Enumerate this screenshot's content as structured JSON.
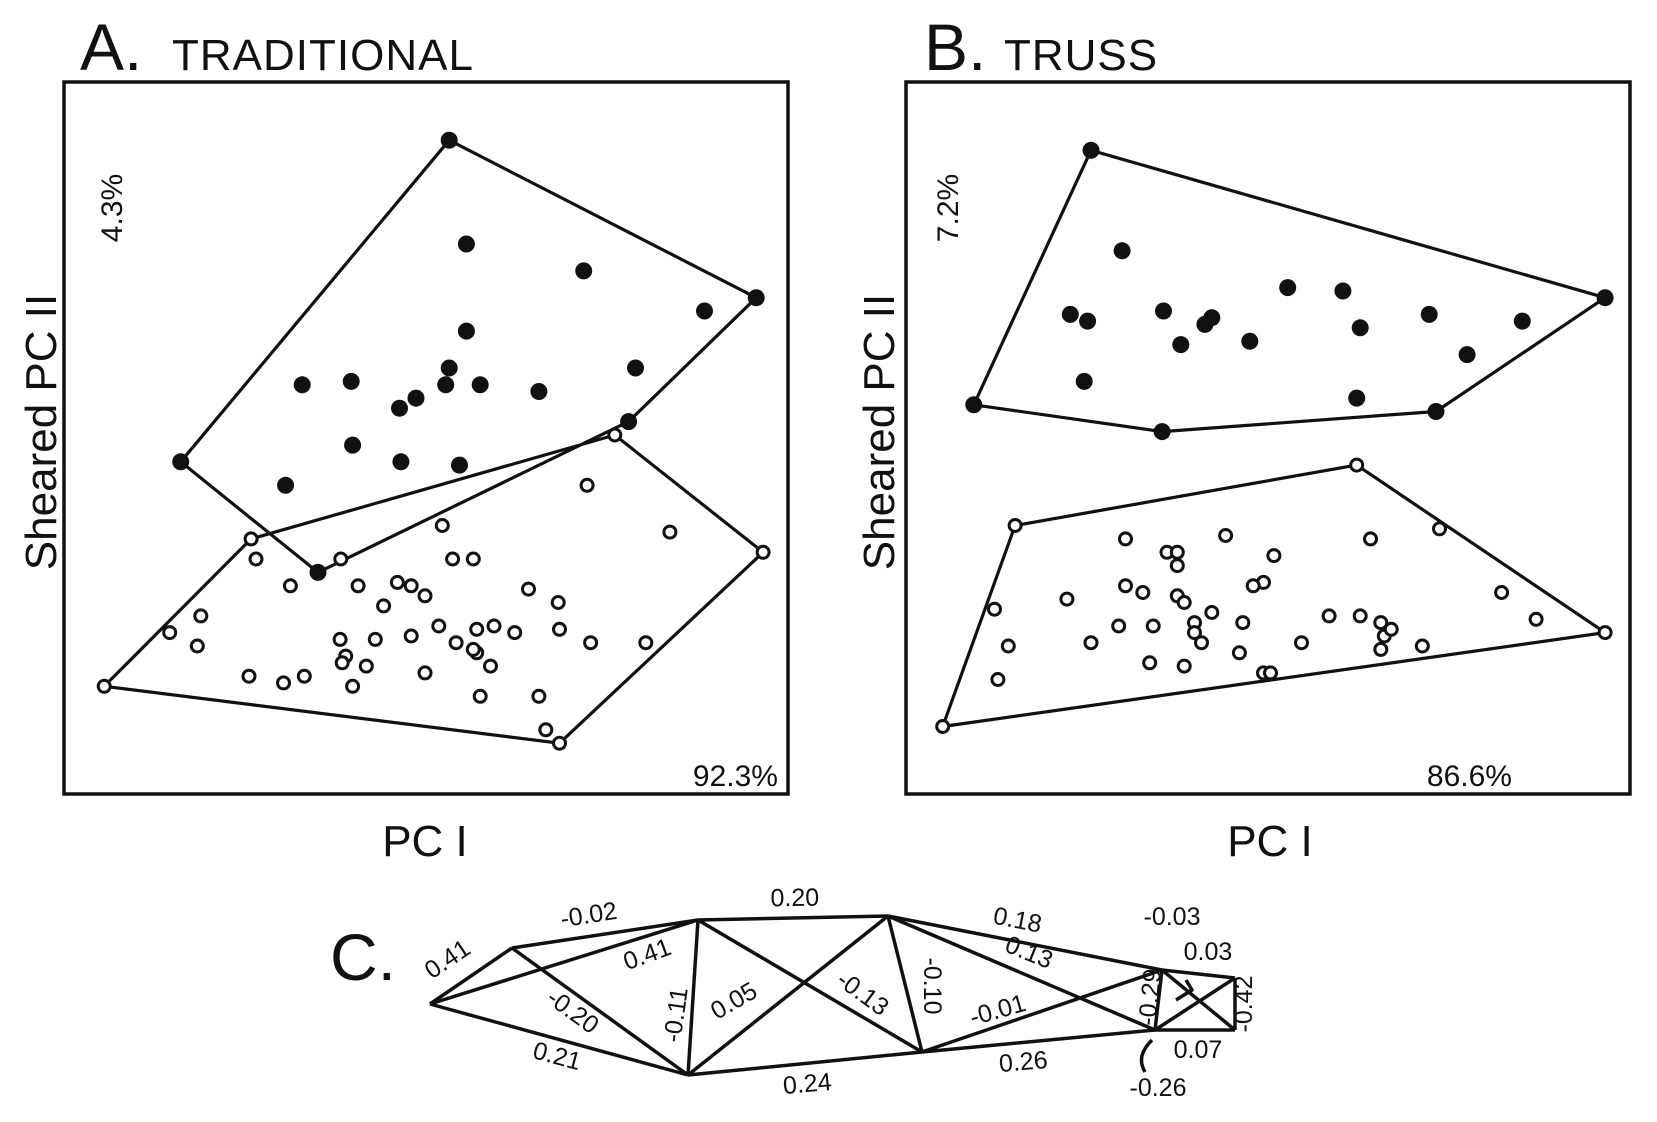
{
  "panels": [
    {
      "letter": "A.",
      "title": "TRADITIONAL",
      "xlabel": "PC I",
      "ylabel": "Sheared PC II",
      "x_variance": "92.3%",
      "y_variance": "4.3%"
    },
    {
      "letter": "B.",
      "title": "TRUSS",
      "xlabel": "PC I",
      "ylabel": "Sheared PC II",
      "x_variance": "86.6%",
      "y_variance": "7.2%"
    }
  ],
  "truss_panel": {
    "letter": "C.",
    "labels": [
      {
        "text": "0.41"
      },
      {
        "text": "-0.02"
      },
      {
        "text": "0.20"
      },
      {
        "text": "0.18"
      },
      {
        "text": "-0.03"
      },
      {
        "text": "0.03"
      },
      {
        "text": "0.41"
      },
      {
        "text": "0.13"
      },
      {
        "text": "-0.20"
      },
      {
        "text": "-0.11"
      },
      {
        "text": "0.05"
      },
      {
        "text": "-0.13"
      },
      {
        "text": "-0.10"
      },
      {
        "text": "-0.01"
      },
      {
        "text": "-0.29"
      },
      {
        "text": "-0.42"
      },
      {
        "text": "0.21"
      },
      {
        "text": "0.24"
      },
      {
        "text": "0.26"
      },
      {
        "text": "0.07"
      },
      {
        "text": "-0.26"
      }
    ]
  },
  "chart_data": [
    {
      "type": "scatter",
      "title": "TRADITIONAL",
      "xlabel": "PC I",
      "ylabel": "Sheared PC II",
      "grid": false,
      "xlim": [
        0,
        100
      ],
      "ylim": [
        0,
        100
      ],
      "series": [
        {
          "marker": "filled-circle",
          "hull": true,
          "points": [
            [
              53.5,
              94.0
            ],
            [
              14.6,
              46.0
            ],
            [
              34.5,
              29.5
            ],
            [
              48.7,
              55.5
            ],
            [
              79.5,
              52.0
            ],
            [
              98.0,
              70.5
            ],
            [
              56.0,
              78.5
            ],
            [
              73.0,
              74.5
            ],
            [
              90.5,
              68.5
            ],
            [
              56.0,
              65.5
            ],
            [
              32.2,
              57.5
            ],
            [
              39.3,
              58.0
            ],
            [
              46.3,
              54.0
            ],
            [
              53.5,
              60.0
            ],
            [
              53.0,
              57.5
            ],
            [
              58.0,
              57.5
            ],
            [
              66.5,
              56.5
            ],
            [
              80.5,
              60.0
            ],
            [
              39.5,
              48.5
            ],
            [
              46.5,
              46.0
            ],
            [
              29.8,
              42.5
            ],
            [
              55.0,
              45.5
            ]
          ]
        },
        {
          "marker": "open-circle",
          "hull": true,
          "points": [
            [
              3.5,
              12.5
            ],
            [
              24.8,
              34.5
            ],
            [
              52.5,
              36.5
            ],
            [
              77.5,
              50.0
            ],
            [
              99.0,
              32.5
            ],
            [
              69.5,
              4.0
            ],
            [
              25.5,
              31.5
            ],
            [
              37.8,
              31.5
            ],
            [
              54.0,
              31.5
            ],
            [
              57.0,
              31.5
            ],
            [
              73.5,
              42.5
            ],
            [
              85.5,
              35.5
            ],
            [
              30.5,
              27.5
            ],
            [
              40.3,
              27.5
            ],
            [
              46.0,
              28.0
            ],
            [
              48.0,
              27.5
            ],
            [
              50.0,
              26.0
            ],
            [
              65.0,
              27.0
            ],
            [
              17.5,
              23.0
            ],
            [
              44.0,
              24.5
            ],
            [
              69.3,
              25.0
            ],
            [
              13.0,
              20.5
            ],
            [
              52.0,
              21.5
            ],
            [
              57.5,
              21.0
            ],
            [
              60.0,
              21.5
            ],
            [
              63.0,
              20.5
            ],
            [
              69.5,
              21.0
            ],
            [
              37.7,
              19.5
            ],
            [
              42.8,
              19.5
            ],
            [
              48.0,
              20.0
            ],
            [
              54.5,
              19.0
            ],
            [
              57.5,
              17.5
            ],
            [
              74.0,
              19.0
            ],
            [
              82.0,
              19.0
            ],
            [
              17.0,
              18.5
            ],
            [
              38.5,
              17.0
            ],
            [
              57.0,
              18.0
            ],
            [
              38.0,
              16.0
            ],
            [
              41.5,
              15.5
            ],
            [
              50.0,
              14.5
            ],
            [
              59.5,
              15.5
            ],
            [
              24.5,
              14.0
            ],
            [
              32.5,
              14.0
            ],
            [
              39.5,
              12.5
            ],
            [
              58.0,
              11.0
            ],
            [
              66.5,
              11.0
            ],
            [
              29.5,
              13.0
            ],
            [
              67.5,
              6.0
            ]
          ]
        }
      ]
    },
    {
      "type": "scatter",
      "title": "TRUSS",
      "xlabel": "PC I",
      "ylabel": "Sheared PC II",
      "grid": false,
      "xlim": [
        0,
        100
      ],
      "ylim": [
        0,
        100
      ],
      "series": [
        {
          "marker": "filled-circle",
          "hull": true,
          "points": [
            [
              24.5,
              92.5
            ],
            [
              99.0,
              70.5
            ],
            [
              74.5,
              53.5
            ],
            [
              34.8,
              50.5
            ],
            [
              7.5,
              54.5
            ],
            [
              29.0,
              77.5
            ],
            [
              21.5,
              68.0
            ],
            [
              24.0,
              67.0
            ],
            [
              35.0,
              68.5
            ],
            [
              37.5,
              63.5
            ],
            [
              41.0,
              66.5
            ],
            [
              42.0,
              67.5
            ],
            [
              47.5,
              64.0
            ],
            [
              53.0,
              72.0
            ],
            [
              61.0,
              71.5
            ],
            [
              63.5,
              66.0
            ],
            [
              73.5,
              68.0
            ],
            [
              87.0,
              67.0
            ],
            [
              79.0,
              62.0
            ],
            [
              23.5,
              58.0
            ],
            [
              63.0,
              55.5
            ]
          ]
        },
        {
          "marker": "open-circle",
          "hull": true,
          "points": [
            [
              13.5,
              36.5
            ],
            [
              3.0,
              6.5
            ],
            [
              99.0,
              20.5
            ],
            [
              75.0,
              36.0
            ],
            [
              63.0,
              45.5
            ],
            [
              44.0,
              35.0
            ],
            [
              29.5,
              34.5
            ],
            [
              35.5,
              32.5
            ],
            [
              37.0,
              32.5
            ],
            [
              37.0,
              30.5
            ],
            [
              51.0,
              32.0
            ],
            [
              49.5,
              28.0
            ],
            [
              48.0,
              27.5
            ],
            [
              29.5,
              27.5
            ],
            [
              65.0,
              34.5
            ],
            [
              84.0,
              26.5
            ],
            [
              21.0,
              25.5
            ],
            [
              32.0,
              26.5
            ],
            [
              37.0,
              26.0
            ],
            [
              38.0,
              25.0
            ],
            [
              42.0,
              23.5
            ],
            [
              59.0,
              23.0
            ],
            [
              63.5,
              23.0
            ],
            [
              10.5,
              24.0
            ],
            [
              39.5,
              22.0
            ],
            [
              46.5,
              22.0
            ],
            [
              66.5,
              22.0
            ],
            [
              28.5,
              21.5
            ],
            [
              33.5,
              21.5
            ],
            [
              39.5,
              20.5
            ],
            [
              67.0,
              20.0
            ],
            [
              68.0,
              21.0
            ],
            [
              89.0,
              22.5
            ],
            [
              12.5,
              18.5
            ],
            [
              24.5,
              19.0
            ],
            [
              40.5,
              19.0
            ],
            [
              55.0,
              19.0
            ],
            [
              66.5,
              18.0
            ],
            [
              72.5,
              18.5
            ],
            [
              46.0,
              17.5
            ],
            [
              33.0,
              16.0
            ],
            [
              38.0,
              15.5
            ],
            [
              49.5,
              14.5
            ],
            [
              50.5,
              14.5
            ],
            [
              11.0,
              13.5
            ]
          ]
        }
      ]
    }
  ]
}
